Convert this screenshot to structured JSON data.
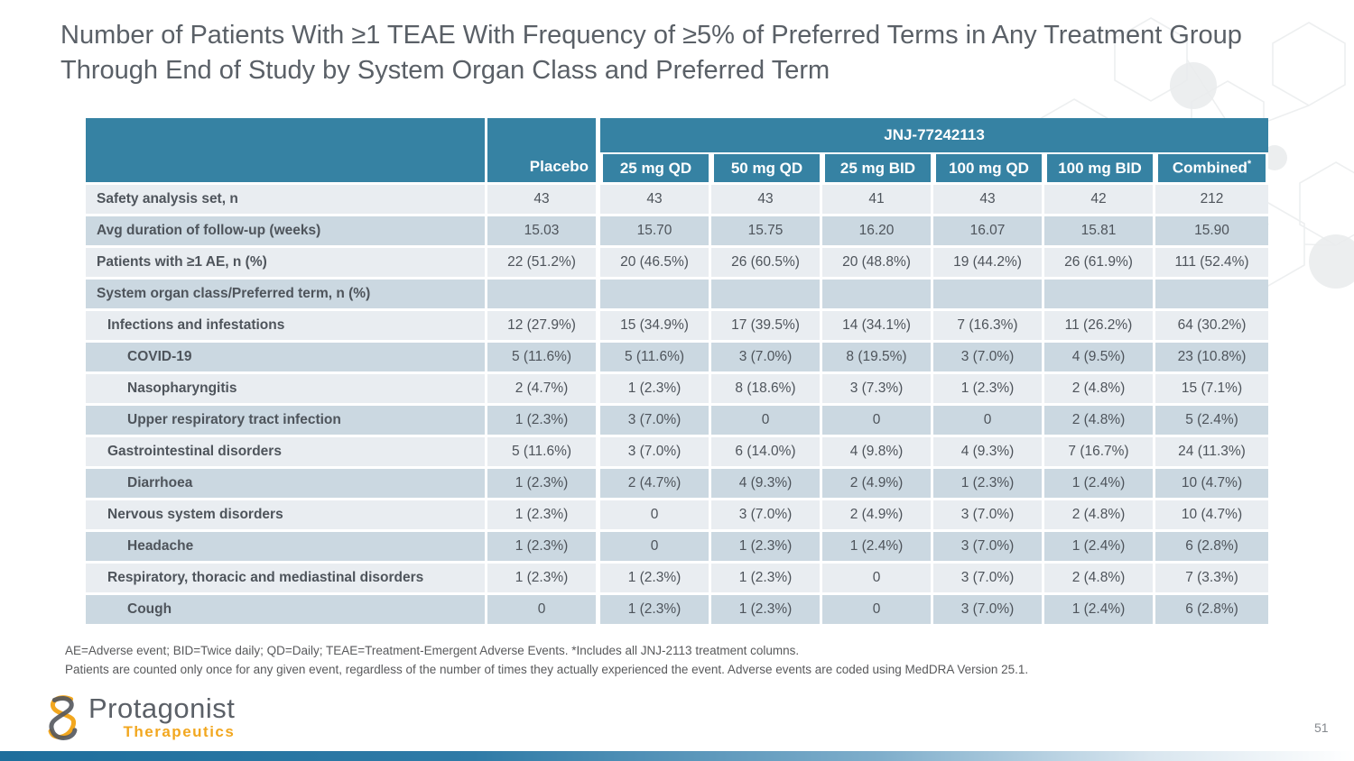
{
  "slide": {
    "title_line1": "Number of Patients With ≥1 TEAE With Frequency of ≥5% of Preferred Terms in Any Treatment Group",
    "title_line2": "Through End of Study by System Organ Class and Preferred Term",
    "page_number": "51"
  },
  "table": {
    "group_header": "JNJ-77242113",
    "placebo_header": "Placebo",
    "sub_headers": [
      "25 mg QD",
      "50 mg QD",
      "25 mg BID",
      "100 mg QD",
      "100 mg BID",
      "Combined*"
    ],
    "rows": [
      {
        "label": "Safety analysis set, n",
        "indent": 0,
        "values": [
          "43",
          "43",
          "43",
          "41",
          "43",
          "42",
          "212"
        ]
      },
      {
        "label": "Avg duration of follow-up (weeks)",
        "indent": 0,
        "values": [
          "15.03",
          "15.70",
          "15.75",
          "16.20",
          "16.07",
          "15.81",
          "15.90"
        ]
      },
      {
        "label": "Patients with ≥1 AE, n (%)",
        "indent": 0,
        "values": [
          "22 (51.2%)",
          "20 (46.5%)",
          "26 (60.5%)",
          "20 (48.8%)",
          "19 (44.2%)",
          "26 (61.9%)",
          "111 (52.4%)"
        ]
      },
      {
        "label": "System organ class/Preferred term, n (%)",
        "indent": 0,
        "values": [
          "",
          "",
          "",
          "",
          "",
          "",
          ""
        ]
      },
      {
        "label": "Infections and infestations",
        "indent": 1,
        "values": [
          "12 (27.9%)",
          "15 (34.9%)",
          "17 (39.5%)",
          "14 (34.1%)",
          "7 (16.3%)",
          "11 (26.2%)",
          "64 (30.2%)"
        ]
      },
      {
        "label": "COVID-19",
        "indent": 2,
        "values": [
          "5 (11.6%)",
          "5 (11.6%)",
          "3 (7.0%)",
          "8 (19.5%)",
          "3 (7.0%)",
          "4 (9.5%)",
          "23 (10.8%)"
        ]
      },
      {
        "label": "Nasopharyngitis",
        "indent": 2,
        "values": [
          "2 (4.7%)",
          "1 (2.3%)",
          "8 (18.6%)",
          "3 (7.3%)",
          "1 (2.3%)",
          "2 (4.8%)",
          "15 (7.1%)"
        ]
      },
      {
        "label": "Upper respiratory tract infection",
        "indent": 2,
        "values": [
          "1 (2.3%)",
          "3 (7.0%)",
          "0",
          "0",
          "0",
          "2 (4.8%)",
          "5 (2.4%)"
        ]
      },
      {
        "label": "Gastrointestinal disorders",
        "indent": 1,
        "values": [
          "5 (11.6%)",
          "3 (7.0%)",
          "6 (14.0%)",
          "4 (9.8%)",
          "4 (9.3%)",
          "7 (16.7%)",
          "24 (11.3%)"
        ]
      },
      {
        "label": "Diarrhoea",
        "indent": 2,
        "values": [
          "1 (2.3%)",
          "2 (4.7%)",
          "4 (9.3%)",
          "2 (4.9%)",
          "1 (2.3%)",
          "1 (2.4%)",
          "10 (4.7%)"
        ]
      },
      {
        "label": "Nervous system disorders",
        "indent": 1,
        "values": [
          "1 (2.3%)",
          "0",
          "3 (7.0%)",
          "2 (4.9%)",
          "3 (7.0%)",
          "2 (4.8%)",
          "10 (4.7%)"
        ]
      },
      {
        "label": "Headache",
        "indent": 2,
        "values": [
          "1 (2.3%)",
          "0",
          "1 (2.3%)",
          "1 (2.4%)",
          "3 (7.0%)",
          "1 (2.4%)",
          "6 (2.8%)"
        ]
      },
      {
        "label": "Respiratory, thoracic and mediastinal disorders",
        "indent": 1,
        "values": [
          "1 (2.3%)",
          "1 (2.3%)",
          "1 (2.3%)",
          "0",
          "3 (7.0%)",
          "2 (4.8%)",
          "7 (3.3%)"
        ]
      },
      {
        "label": "Cough",
        "indent": 2,
        "values": [
          "0",
          "1 (2.3%)",
          "1 (2.3%)",
          "0",
          "3 (7.0%)",
          "1 (2.4%)",
          "6 (2.8%)"
        ]
      }
    ]
  },
  "footnotes": {
    "line1": "AE=Adverse event; BID=Twice daily; QD=Daily; TEAE=Treatment-Emergent Adverse Events. *Includes all JNJ-2113 treatment columns.",
    "line2": "Patients are counted only once for any given event, regardless of the number of times they actually experienced the event. Adverse events are coded using MedDRA Version 25.1."
  },
  "logo": {
    "name": "Protagonist",
    "tagline": "Therapeutics"
  },
  "colors": {
    "header_teal": "#3682A3",
    "row_light": "#E9EDF1",
    "row_dark": "#CBD8E1",
    "cell_text": "#4E545B",
    "title_gray": "#5A6067",
    "logo_gray": "#5B6067",
    "logo_orange": "#F2A71F",
    "footer_bar_blue": "#1E6E9C"
  }
}
